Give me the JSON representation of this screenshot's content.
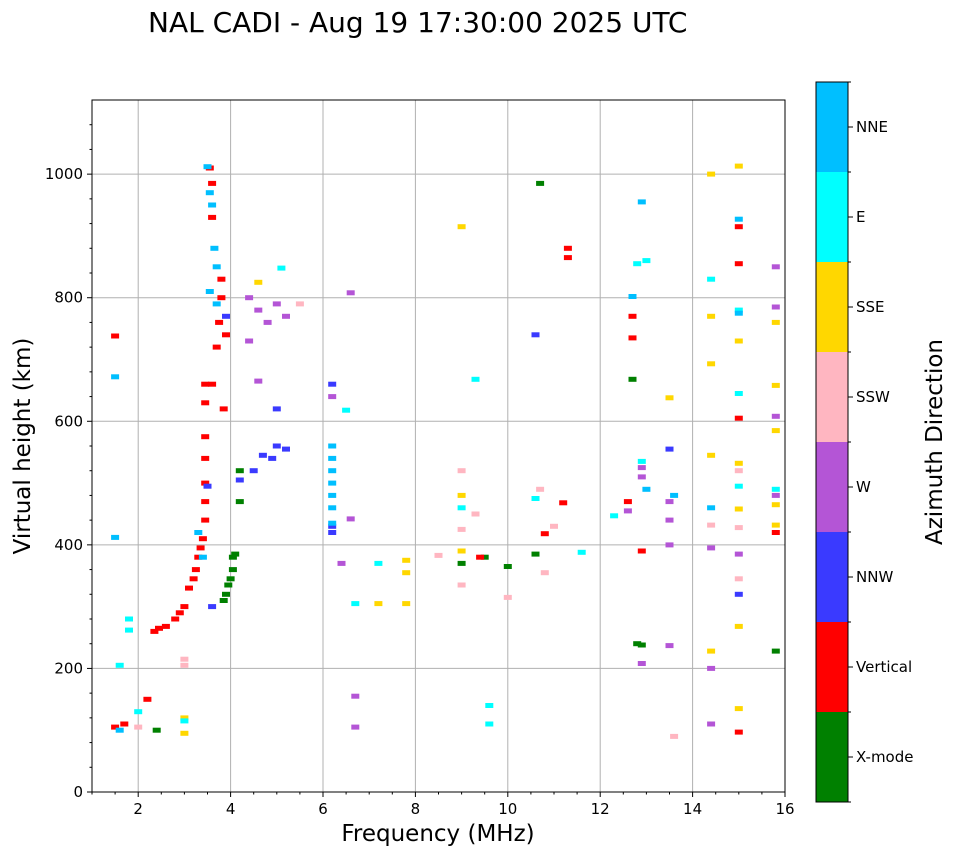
{
  "chart_data": {
    "type": "scatter",
    "title": "NAL CADI - Aug 19 17:30:00 2025 UTC",
    "xlabel": "Frequency (MHz)",
    "ylabel": "Virtual height (km)",
    "xlim": [
      1,
      16
    ],
    "ylim": [
      0,
      1120
    ],
    "xticks": [
      2,
      4,
      6,
      8,
      10,
      12,
      14,
      16
    ],
    "yticks": [
      0,
      200,
      400,
      600,
      800,
      1000
    ],
    "grid": true,
    "colorbar": {
      "label": "Azimuth Direction",
      "categories": [
        "X-mode",
        "Vertical",
        "NNW",
        "W",
        "SSW",
        "SSE",
        "E",
        "NNE"
      ],
      "colors": [
        "#008000",
        "#ff0000",
        "#3a3aff",
        "#b455d6",
        "#ffb6c1",
        "#ffd700",
        "#00ffff",
        "#00bfff"
      ]
    },
    "series": [
      {
        "name": "X-mode",
        "color": "#008000",
        "points": [
          [
            3.85,
            310
          ],
          [
            3.9,
            320
          ],
          [
            3.95,
            335
          ],
          [
            4.0,
            345
          ],
          [
            4.05,
            360
          ],
          [
            4.05,
            380
          ],
          [
            4.1,
            385
          ],
          [
            4.2,
            470
          ],
          [
            4.2,
            520
          ],
          [
            2.4,
            100
          ],
          [
            10.7,
            985
          ],
          [
            12.7,
            668
          ],
          [
            12.8,
            240
          ],
          [
            12.9,
            238
          ],
          [
            15.8,
            228
          ],
          [
            10.0,
            365
          ],
          [
            10.6,
            385
          ],
          [
            9.0,
            370
          ],
          [
            9.5,
            380
          ]
        ]
      },
      {
        "name": "Vertical",
        "color": "#ff0000",
        "points": [
          [
            1.5,
            738
          ],
          [
            1.5,
            105
          ],
          [
            1.7,
            110
          ],
          [
            2.2,
            150
          ],
          [
            2.35,
            260
          ],
          [
            2.45,
            265
          ],
          [
            2.6,
            268
          ],
          [
            2.8,
            280
          ],
          [
            2.9,
            290
          ],
          [
            3.0,
            300
          ],
          [
            3.1,
            330
          ],
          [
            3.2,
            345
          ],
          [
            3.25,
            360
          ],
          [
            3.3,
            380
          ],
          [
            3.35,
            395
          ],
          [
            3.4,
            410
          ],
          [
            3.45,
            440
          ],
          [
            3.45,
            470
          ],
          [
            3.45,
            500
          ],
          [
            3.45,
            540
          ],
          [
            3.45,
            575
          ],
          [
            3.45,
            630
          ],
          [
            3.45,
            660
          ],
          [
            3.6,
            660
          ],
          [
            3.7,
            720
          ],
          [
            3.75,
            760
          ],
          [
            3.8,
            800
          ],
          [
            3.85,
            620
          ],
          [
            3.9,
            740
          ],
          [
            3.55,
            1010
          ],
          [
            3.6,
            985
          ],
          [
            3.6,
            930
          ],
          [
            3.8,
            830
          ],
          [
            12.7,
            735
          ],
          [
            12.7,
            770
          ],
          [
            15.0,
            855
          ],
          [
            15.0,
            605
          ],
          [
            15.0,
            915
          ],
          [
            15.0,
            97
          ],
          [
            11.3,
            880
          ],
          [
            11.3,
            865
          ],
          [
            10.8,
            418
          ],
          [
            11.2,
            468
          ],
          [
            9.4,
            380
          ],
          [
            12.6,
            470
          ],
          [
            12.9,
            390
          ],
          [
            15.8,
            420
          ]
        ]
      },
      {
        "name": "NNW",
        "color": "#3a3aff",
        "points": [
          [
            3.6,
            300
          ],
          [
            3.5,
            495
          ],
          [
            3.9,
            770
          ],
          [
            4.2,
            505
          ],
          [
            4.5,
            520
          ],
          [
            4.7,
            545
          ],
          [
            4.9,
            540
          ],
          [
            5.0,
            560
          ],
          [
            5.2,
            555
          ],
          [
            5.0,
            620
          ],
          [
            6.2,
            420
          ],
          [
            6.2,
            430
          ],
          [
            6.2,
            660
          ],
          [
            13.5,
            555
          ],
          [
            10.6,
            740
          ],
          [
            15.0,
            320
          ]
        ]
      },
      {
        "name": "W",
        "color": "#b455d6",
        "points": [
          [
            4.4,
            800
          ],
          [
            4.6,
            780
          ],
          [
            4.8,
            760
          ],
          [
            5.0,
            790
          ],
          [
            5.2,
            770
          ],
          [
            4.6,
            665
          ],
          [
            4.4,
            730
          ],
          [
            6.2,
            640
          ],
          [
            6.6,
            808
          ],
          [
            6.6,
            442
          ],
          [
            6.7,
            155
          ],
          [
            6.7,
            105
          ],
          [
            6.4,
            370
          ],
          [
            12.9,
            525
          ],
          [
            12.9,
            510
          ],
          [
            12.9,
            208
          ],
          [
            13.5,
            470
          ],
          [
            13.5,
            440
          ],
          [
            13.5,
            400
          ],
          [
            13.5,
            237
          ],
          [
            14.4,
            395
          ],
          [
            14.4,
            200
          ],
          [
            14.4,
            110
          ],
          [
            15.0,
            385
          ],
          [
            15.8,
            850
          ],
          [
            15.8,
            785
          ],
          [
            15.8,
            608
          ],
          [
            15.8,
            480
          ],
          [
            12.6,
            455
          ]
        ]
      },
      {
        "name": "SSW",
        "color": "#ffb6c1",
        "points": [
          [
            3.0,
            215
          ],
          [
            3.0,
            205
          ],
          [
            2.0,
            105
          ],
          [
            9.0,
            520
          ],
          [
            9.0,
            425
          ],
          [
            9.0,
            335
          ],
          [
            10.0,
            315
          ],
          [
            10.7,
            490
          ],
          [
            10.8,
            355
          ],
          [
            11.0,
            430
          ],
          [
            13.6,
            90
          ],
          [
            14.4,
            432
          ],
          [
            15.0,
            345
          ],
          [
            15.0,
            428
          ],
          [
            15.0,
            520
          ],
          [
            9.3,
            450
          ],
          [
            5.5,
            790
          ],
          [
            8.5,
            383
          ]
        ]
      },
      {
        "name": "SSE",
        "color": "#ffd700",
        "points": [
          [
            3.0,
            120
          ],
          [
            3.0,
            95
          ],
          [
            4.6,
            825
          ],
          [
            7.2,
            305
          ],
          [
            7.8,
            305
          ],
          [
            7.8,
            355
          ],
          [
            7.8,
            375
          ],
          [
            9.0,
            915
          ],
          [
            9.0,
            480
          ],
          [
            9.0,
            390
          ],
          [
            13.5,
            638
          ],
          [
            14.4,
            1000
          ],
          [
            14.4,
            770
          ],
          [
            14.4,
            693
          ],
          [
            14.4,
            545
          ],
          [
            14.4,
            228
          ],
          [
            15.0,
            1013
          ],
          [
            15.0,
            730
          ],
          [
            15.0,
            458
          ],
          [
            15.0,
            532
          ],
          [
            15.0,
            268
          ],
          [
            15.0,
            135
          ],
          [
            15.8,
            760
          ],
          [
            15.8,
            658
          ],
          [
            15.8,
            585
          ],
          [
            15.8,
            432
          ],
          [
            15.8,
            465
          ]
        ]
      },
      {
        "name": "E",
        "color": "#00ffff",
        "points": [
          [
            1.6,
            205
          ],
          [
            1.8,
            280
          ],
          [
            1.8,
            262
          ],
          [
            2.0,
            130
          ],
          [
            3.0,
            115
          ],
          [
            5.1,
            848
          ],
          [
            6.5,
            618
          ],
          [
            6.7,
            305
          ],
          [
            7.2,
            370
          ],
          [
            9.3,
            668
          ],
          [
            9.6,
            140
          ],
          [
            9.6,
            110
          ],
          [
            9.0,
            460
          ],
          [
            10.6,
            475
          ],
          [
            12.8,
            855
          ],
          [
            12.9,
            535
          ],
          [
            13.0,
            860
          ],
          [
            14.4,
            830
          ],
          [
            15.0,
            780
          ],
          [
            15.0,
            645
          ],
          [
            15.0,
            495
          ],
          [
            15.8,
            490
          ],
          [
            11.6,
            388
          ],
          [
            12.3,
            447
          ]
        ]
      },
      {
        "name": "NNE",
        "color": "#00bfff",
        "points": [
          [
            1.5,
            672
          ],
          [
            1.5,
            412
          ],
          [
            1.6,
            100
          ],
          [
            3.5,
            1012
          ],
          [
            3.55,
            970
          ],
          [
            3.6,
            950
          ],
          [
            3.65,
            880
          ],
          [
            3.7,
            850
          ],
          [
            3.55,
            810
          ],
          [
            3.7,
            790
          ],
          [
            3.3,
            420
          ],
          [
            3.4,
            380
          ],
          [
            6.2,
            560
          ],
          [
            6.2,
            540
          ],
          [
            6.2,
            520
          ],
          [
            6.2,
            500
          ],
          [
            6.2,
            480
          ],
          [
            6.2,
            460
          ],
          [
            6.2,
            435
          ],
          [
            12.7,
            802
          ],
          [
            12.9,
            955
          ],
          [
            13.0,
            490
          ],
          [
            13.6,
            480
          ],
          [
            14.4,
            460
          ],
          [
            15.0,
            927
          ],
          [
            15.0,
            775
          ]
        ]
      }
    ]
  }
}
